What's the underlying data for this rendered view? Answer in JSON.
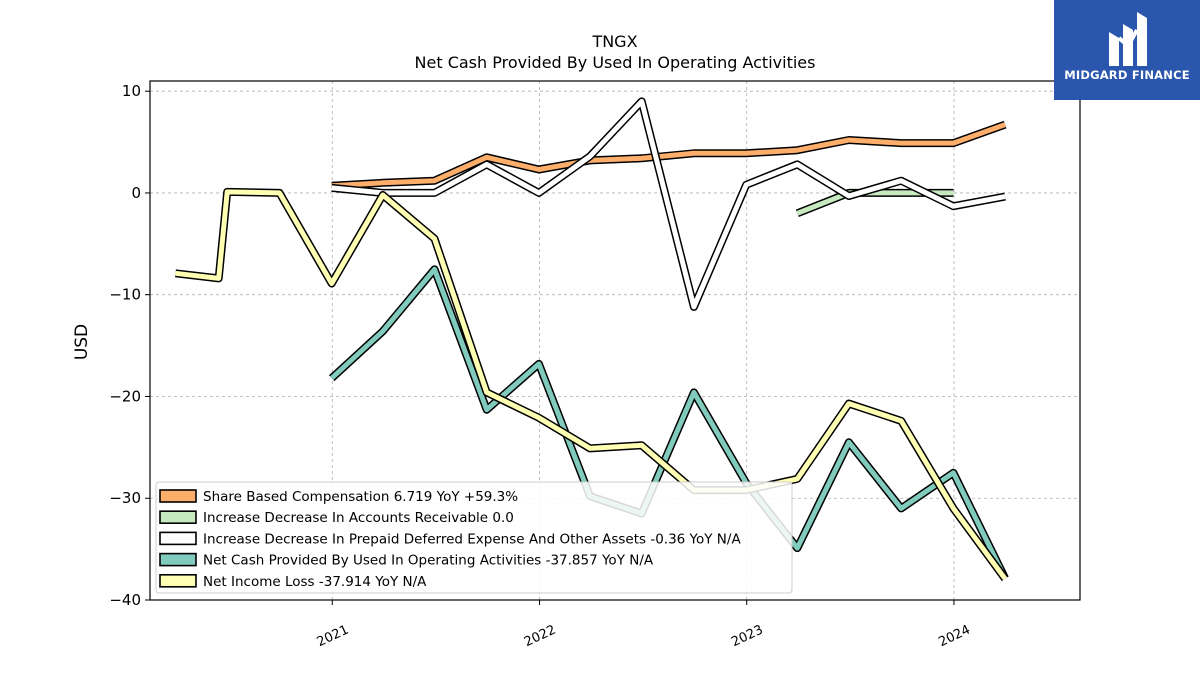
{
  "brand": {
    "name": "MIDGARD FINANCE",
    "color": "#2a56ad"
  },
  "chart_data": {
    "type": "line",
    "title": "TNGX",
    "subtitle": "Net Cash Provided By Used In Operating Activities",
    "xlabel": "",
    "ylabel": "USD",
    "ylim": [
      -40,
      11
    ],
    "xlim": [
      "2020-02-15",
      "2024-08-10"
    ],
    "yticks": [
      10,
      0,
      -10,
      -20,
      -30,
      -40
    ],
    "ytick_labels": [
      "10",
      "0",
      "−10",
      "−20",
      "−30",
      "−40"
    ],
    "xticks": [
      "2021-01-01",
      "2022-01-01",
      "2023-01-01",
      "2024-01-01"
    ],
    "xtick_labels": [
      "2021",
      "2022",
      "2023",
      "2024"
    ],
    "grid": true,
    "legend_position": "lower-left",
    "series": [
      {
        "name": "Share Based Compensation",
        "legend": "Share Based Compensation  6.719 YoY +59.3%",
        "color": "#fdae6b",
        "points": [
          [
            "2020-12-31",
            0.7
          ],
          [
            "2021-03-31",
            1.0
          ],
          [
            "2021-06-30",
            1.2
          ],
          [
            "2021-09-30",
            3.5
          ],
          [
            "2021-12-31",
            2.3
          ],
          [
            "2022-03-31",
            3.2
          ],
          [
            "2022-06-30",
            3.4
          ],
          [
            "2022-09-30",
            3.9
          ],
          [
            "2022-12-31",
            3.9
          ],
          [
            "2023-03-31",
            4.2
          ],
          [
            "2023-06-30",
            5.2
          ],
          [
            "2023-09-30",
            4.9
          ],
          [
            "2023-12-31",
            4.9
          ],
          [
            "2024-03-31",
            6.719
          ]
        ]
      },
      {
        "name": "Increase Decrease In Accounts Receivable",
        "legend": "Increase Decrease In Accounts Receivable  0.0",
        "color": "#c7e9c0",
        "points": [
          [
            "2023-03-31",
            -2.0
          ],
          [
            "2023-06-30",
            0.0
          ],
          [
            "2023-09-30",
            0.0
          ],
          [
            "2023-12-31",
            0.0
          ]
        ]
      },
      {
        "name": "Increase Decrease In Prepaid Deferred Expense And Other Assets",
        "legend": "Increase Decrease In Prepaid Deferred Expense And Other Assets  -0.36 YoY N/A",
        "color": "#ffffff",
        "points": [
          [
            "2020-12-31",
            0.5
          ],
          [
            "2021-03-31",
            0.0
          ],
          [
            "2021-06-30",
            0.0
          ],
          [
            "2021-09-30",
            2.8
          ],
          [
            "2021-12-31",
            0.0
          ],
          [
            "2022-03-31",
            3.6
          ],
          [
            "2022-06-30",
            9.0
          ],
          [
            "2022-09-30",
            -11.2
          ],
          [
            "2022-12-31",
            0.8
          ],
          [
            "2023-03-31",
            2.8
          ],
          [
            "2023-06-30",
            -0.3
          ],
          [
            "2023-09-30",
            1.2
          ],
          [
            "2023-12-31",
            -1.3
          ],
          [
            "2024-03-31",
            -0.36
          ]
        ]
      },
      {
        "name": "Net Cash Provided By Used In Operating Activities",
        "legend": "Net Cash Provided By Used In Operating Activities  -37.857 YoY N/A",
        "color": "#80cbbd",
        "points": [
          [
            "2020-12-31",
            -18.2
          ],
          [
            "2021-03-31",
            -13.6
          ],
          [
            "2021-06-30",
            -7.5
          ],
          [
            "2021-09-30",
            -21.3
          ],
          [
            "2021-12-31",
            -16.8
          ],
          [
            "2022-03-31",
            -29.8
          ],
          [
            "2022-06-30",
            -31.5
          ],
          [
            "2022-09-30",
            -19.6
          ],
          [
            "2022-12-31",
            -28.5
          ],
          [
            "2023-03-31",
            -34.9
          ],
          [
            "2023-06-30",
            -24.5
          ],
          [
            "2023-09-30",
            -31.0
          ],
          [
            "2023-12-31",
            -27.5
          ],
          [
            "2024-03-31",
            -37.857
          ]
        ]
      },
      {
        "name": "Net Income Loss",
        "legend": "Net Income Loss  -37.914 YoY N/A",
        "color": "#ffffb3",
        "points": [
          [
            "2020-03-31",
            -7.9
          ],
          [
            "2020-06-15",
            -8.4
          ],
          [
            "2020-06-30",
            0.1
          ],
          [
            "2020-09-30",
            0.0
          ],
          [
            "2020-12-31",
            -8.9
          ],
          [
            "2021-03-31",
            -0.2
          ],
          [
            "2021-06-30",
            -4.5
          ],
          [
            "2021-09-30",
            -19.6
          ],
          [
            "2021-12-31",
            -22.1
          ],
          [
            "2022-03-31",
            -25.1
          ],
          [
            "2022-06-30",
            -24.8
          ],
          [
            "2022-09-30",
            -29.2
          ],
          [
            "2022-12-31",
            -29.2
          ],
          [
            "2023-03-31",
            -28.1
          ],
          [
            "2023-06-30",
            -20.7
          ],
          [
            "2023-09-30",
            -22.4
          ],
          [
            "2023-12-31",
            -31.0
          ],
          [
            "2024-03-31",
            -37.914
          ]
        ]
      }
    ]
  }
}
